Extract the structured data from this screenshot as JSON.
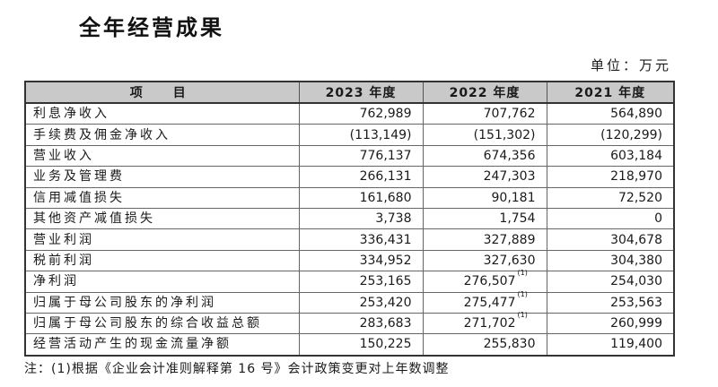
{
  "title": "全年经营成果",
  "unit": "单位：万元",
  "table": {
    "headers": {
      "item": "项　目",
      "y2023": "2023 年度",
      "y2022": "2022 年度",
      "y2021": "2021 年度"
    },
    "rows": [
      {
        "label": "利息净收入",
        "y2023": "762,989",
        "y2022": "707,762",
        "y2021": "564,890"
      },
      {
        "label": "手续费及佣金净收入",
        "y2023": "(113,149)",
        "y2022": "(151,302)",
        "y2021": "(120,299)"
      },
      {
        "label": "营业收入",
        "y2023": "776,137",
        "y2022": "674,356",
        "y2021": "603,184"
      },
      {
        "label": "业务及管理费",
        "y2023": "266,131",
        "y2022": "247,303",
        "y2021": "218,970"
      },
      {
        "label": "信用减值损失",
        "y2023": "161,680",
        "y2022": "90,181",
        "y2021": "72,520"
      },
      {
        "label": "其他资产减值损失",
        "y2023": "3,738",
        "y2022": "1,754",
        "y2021": "0"
      },
      {
        "label": "营业利润",
        "y2023": "336,431",
        "y2022": "327,889",
        "y2021": "304,678"
      },
      {
        "label": "税前利润",
        "y2023": "334,952",
        "y2022": "327,630",
        "y2021": "304,380"
      },
      {
        "label": "净利润",
        "y2023": "253,165",
        "y2022": "276,507",
        "y2022_note": "(1)",
        "y2021": "254,030"
      },
      {
        "label": "归属于母公司股东的净利润",
        "y2023": "253,420",
        "y2022": "275,477",
        "y2022_note": "(1)",
        "y2021": "253,563"
      },
      {
        "label": "归属于母公司股东的综合收益总额",
        "y2023": "283,683",
        "y2022": "271,702",
        "y2022_note": "(1)",
        "y2021": "260,999"
      },
      {
        "label": "经营活动产生的现金流量净额",
        "y2023": "150,225",
        "y2022": "255,830",
        "y2021": "119,400"
      }
    ]
  },
  "footnote": "注：(1)根据《企业会计准则解释第 16 号》会计政策变更对上年数调整"
}
